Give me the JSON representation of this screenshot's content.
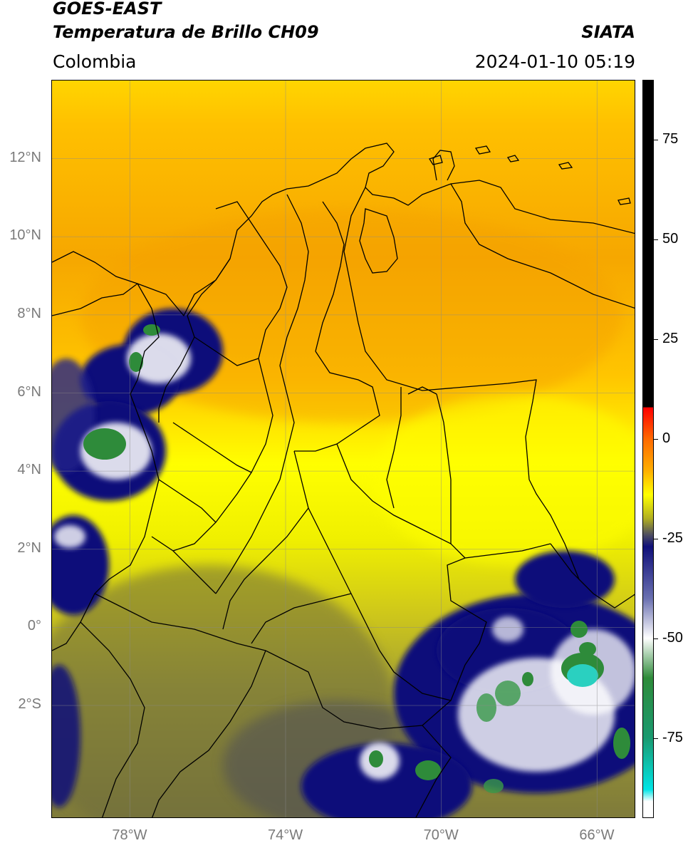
{
  "header": {
    "satellite": "GOES-EAST",
    "product": "Temperatura de Brillo CH09",
    "region": "Colombia",
    "agency": "SIATA",
    "datetime": "2024-01-10 05:19"
  },
  "map": {
    "extent": {
      "lon_min": -80,
      "lon_max": -65,
      "lat_min": -4.9,
      "lat_max": 14
    },
    "lat_ticks": [
      {
        "value": 12,
        "label": "12°N"
      },
      {
        "value": 10,
        "label": "10°N"
      },
      {
        "value": 8,
        "label": "8°N"
      },
      {
        "value": 6,
        "label": "6°N"
      },
      {
        "value": 4,
        "label": "4°N"
      },
      {
        "value": 2,
        "label": "2°N"
      },
      {
        "value": 0,
        "label": "0°"
      },
      {
        "value": -2,
        "label": "2°S"
      }
    ],
    "lon_ticks": [
      {
        "value": -78,
        "label": "78°W"
      },
      {
        "value": -74,
        "label": "74°W"
      },
      {
        "value": -70,
        "label": "70°W"
      },
      {
        "value": -66,
        "label": "66°W"
      }
    ],
    "gridlines": true,
    "colors": {
      "warm": "#f4a800",
      "mid": "#ffff00",
      "olive": "#8c8a3a",
      "cold": "#0a0a7a",
      "white": "#ffffff",
      "green": "#2e8b3a",
      "cyan": "#2ad0c0"
    }
  },
  "colorbar": {
    "min": -95,
    "max": 90,
    "ticks": [
      {
        "value": 75,
        "label": "75"
      },
      {
        "value": 50,
        "label": "50"
      },
      {
        "value": 25,
        "label": "25"
      },
      {
        "value": 0,
        "label": "0"
      },
      {
        "value": -25,
        "label": "-25"
      },
      {
        "value": -50,
        "label": "-50"
      },
      {
        "value": -75,
        "label": "-75"
      }
    ],
    "stops": [
      {
        "value": 90,
        "color": "#000000"
      },
      {
        "value": 8,
        "color": "#000000"
      },
      {
        "value": 7.9,
        "color": "#ff0000"
      },
      {
        "value": 0,
        "color": "#ff6a00"
      },
      {
        "value": -8,
        "color": "#ffb000"
      },
      {
        "value": -14,
        "color": "#ffff00"
      },
      {
        "value": -20,
        "color": "#b0ae20"
      },
      {
        "value": -24,
        "color": "#505060"
      },
      {
        "value": -27,
        "color": "#10107a"
      },
      {
        "value": -40,
        "color": "#6a70b0"
      },
      {
        "value": -50,
        "color": "#ffffff"
      },
      {
        "value": -60,
        "color": "#2e8b3a"
      },
      {
        "value": -75,
        "color": "#1a9a70"
      },
      {
        "value": -88,
        "color": "#00e5e5"
      },
      {
        "value": -91,
        "color": "#ffffff"
      },
      {
        "value": -95,
        "color": "#ffffff"
      }
    ]
  }
}
